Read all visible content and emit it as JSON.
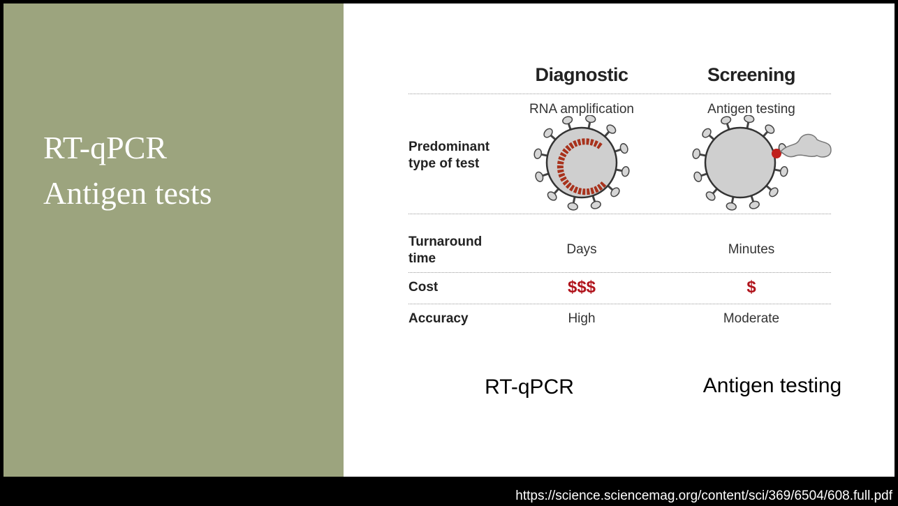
{
  "slide": {
    "title_lines": [
      "RT-qPCR",
      "Antigen tests"
    ]
  },
  "figure": {
    "columns": [
      "Diagnostic",
      "Screening"
    ],
    "methods": [
      "RNA amplification",
      "Antigen testing"
    ],
    "test_type_label": "Predominant type of test",
    "rows": [
      [
        "Turnaround time",
        "Days",
        "Minutes"
      ],
      [
        "Cost",
        "$$$",
        "$"
      ],
      [
        "Accuracy",
        "High",
        "Moderate"
      ]
    ]
  },
  "captions": [
    "RT-qPCR",
    "Antigen testing"
  ],
  "footer": {
    "url": "https://science.sciencemag.org/content/sci/369/6504/608.full.pdf"
  }
}
